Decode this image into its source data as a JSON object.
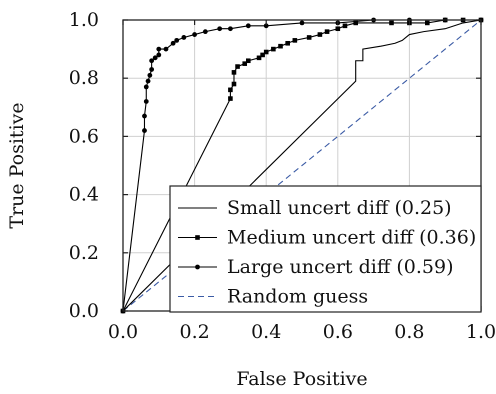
{
  "chart_data": {
    "type": "line",
    "title": "",
    "xlabel": "False Positive",
    "ylabel": "True Positive",
    "xlim": [
      0,
      1
    ],
    "ylim": [
      0,
      1
    ],
    "xticks": [
      "0.0",
      "0.2",
      "0.4",
      "0.6",
      "0.8",
      "1.0"
    ],
    "yticks": [
      "0.0",
      "0.2",
      "0.4",
      "0.6",
      "0.8",
      "1.0"
    ],
    "grid": true,
    "legend_position": "bottom-right",
    "series": [
      {
        "name": "Small uncert diff (0.25)",
        "color": "#000000",
        "marker": "none",
        "dash": "solid",
        "points": [
          [
            0,
            0
          ],
          [
            0.65,
            0.79
          ],
          [
            0.65,
            0.86
          ],
          [
            0.67,
            0.86
          ],
          [
            0.67,
            0.9
          ],
          [
            0.72,
            0.91
          ],
          [
            0.76,
            0.92
          ],
          [
            0.78,
            0.93
          ],
          [
            0.8,
            0.95
          ],
          [
            0.84,
            0.96
          ],
          [
            0.9,
            0.97
          ],
          [
            0.95,
            0.99
          ],
          [
            1,
            1
          ]
        ]
      },
      {
        "name": "Medium uncert diff (0.36)",
        "color": "#000000",
        "marker": "square",
        "dash": "solid",
        "points": [
          [
            0,
            0
          ],
          [
            0.3,
            0.73
          ],
          [
            0.3,
            0.76
          ],
          [
            0.31,
            0.78
          ],
          [
            0.31,
            0.82
          ],
          [
            0.32,
            0.84
          ],
          [
            0.34,
            0.85
          ],
          [
            0.35,
            0.86
          ],
          [
            0.38,
            0.87
          ],
          [
            0.39,
            0.88
          ],
          [
            0.4,
            0.89
          ],
          [
            0.42,
            0.9
          ],
          [
            0.44,
            0.91
          ],
          [
            0.46,
            0.92
          ],
          [
            0.48,
            0.93
          ],
          [
            0.52,
            0.94
          ],
          [
            0.55,
            0.95
          ],
          [
            0.57,
            0.96
          ],
          [
            0.6,
            0.97
          ],
          [
            0.62,
            0.98
          ],
          [
            0.65,
            0.99
          ],
          [
            0.75,
            0.99
          ],
          [
            0.8,
            0.99
          ],
          [
            0.85,
            0.99
          ],
          [
            0.9,
            1
          ],
          [
            0.95,
            1
          ],
          [
            1,
            1
          ]
        ]
      },
      {
        "name": "Large uncert diff (0.59)",
        "color": "#000000",
        "marker": "circle",
        "dash": "solid",
        "points": [
          [
            0,
            0
          ],
          [
            0.06,
            0.62
          ],
          [
            0.06,
            0.67
          ],
          [
            0.065,
            0.72
          ],
          [
            0.065,
            0.77
          ],
          [
            0.07,
            0.79
          ],
          [
            0.075,
            0.81
          ],
          [
            0.08,
            0.83
          ],
          [
            0.08,
            0.86
          ],
          [
            0.09,
            0.87
          ],
          [
            0.1,
            0.88
          ],
          [
            0.1,
            0.9
          ],
          [
            0.12,
            0.9
          ],
          [
            0.14,
            0.92
          ],
          [
            0.15,
            0.93
          ],
          [
            0.17,
            0.94
          ],
          [
            0.2,
            0.95
          ],
          [
            0.23,
            0.96
          ],
          [
            0.27,
            0.97
          ],
          [
            0.3,
            0.97
          ],
          [
            0.35,
            0.98
          ],
          [
            0.4,
            0.98
          ],
          [
            0.5,
            0.99
          ],
          [
            0.6,
            0.99
          ],
          [
            0.7,
            1
          ],
          [
            0.8,
            1
          ],
          [
            0.9,
            1
          ],
          [
            1,
            1
          ]
        ]
      },
      {
        "name": "Random guess",
        "color": "#3b5ba5",
        "marker": "none",
        "dash": "dashed",
        "points": [
          [
            0,
            0
          ],
          [
            1,
            1
          ]
        ]
      }
    ]
  }
}
